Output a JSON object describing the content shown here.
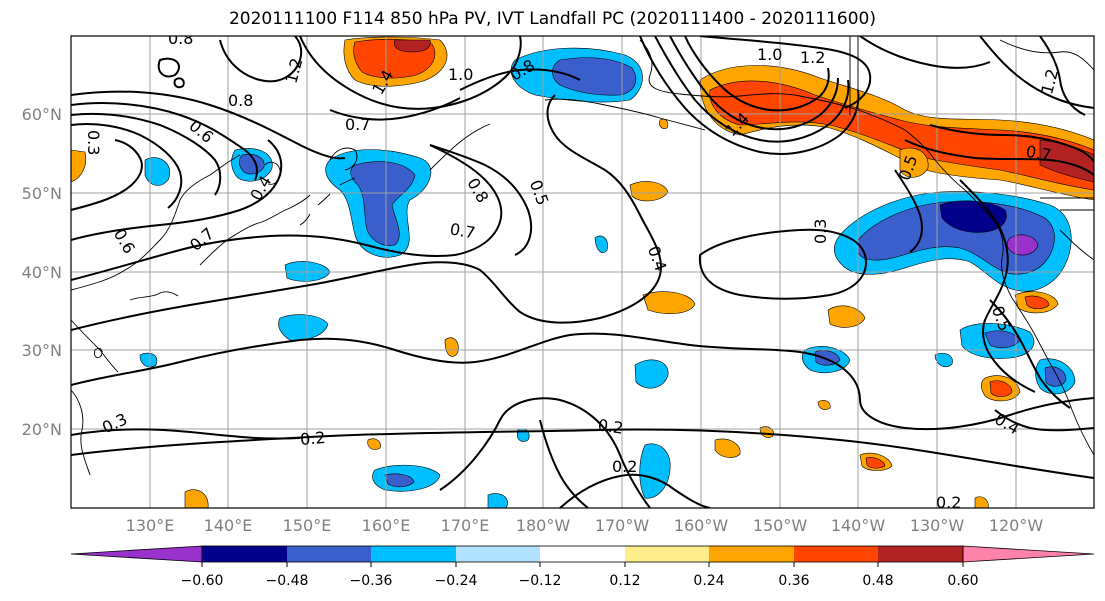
{
  "title": "2020111100 F114 850 hPa PV, IVT Landfall PC (2020111400 - 2020111600)",
  "lat_labels": [
    "60°N",
    "50°N",
    "40°N",
    "30°N",
    "20°N"
  ],
  "lon_labels": [
    "130°E",
    "140°E",
    "150°E",
    "160°E",
    "170°E",
    "180°W",
    "170°W",
    "160°W",
    "150°W",
    "140°W",
    "130°W",
    "120°W"
  ],
  "contour_labels": [
    "0.8",
    "1.2",
    "0.8",
    "1.0",
    "0.8",
    "1.0",
    "1.2",
    "1.4",
    "1.4",
    "1.2",
    "0.3",
    "0.6",
    "0.7",
    "0.4",
    "0.6",
    "0.7",
    "0.8",
    "0.5",
    "0.7",
    "0.3",
    "0.4",
    "0.7",
    "0.5",
    "0.3",
    "0.2",
    "0.2",
    "0.2",
    "0.4",
    "0.2",
    "0.5"
  ],
  "colorbar": {
    "colors": [
      "#9932cc",
      "#00008b",
      "#3a5fcd",
      "#00bfff",
      "#b0e2ff",
      "#ffffff",
      "#ffec8b",
      "#ffa500",
      "#ff4500",
      "#b22222",
      "#ff82ab"
    ],
    "tick_labels": [
      "−0.60",
      "−0.48",
      "−0.36",
      "−0.24",
      "−0.12",
      "0.12",
      "0.24",
      "0.36",
      "0.48",
      "0.60"
    ]
  }
}
